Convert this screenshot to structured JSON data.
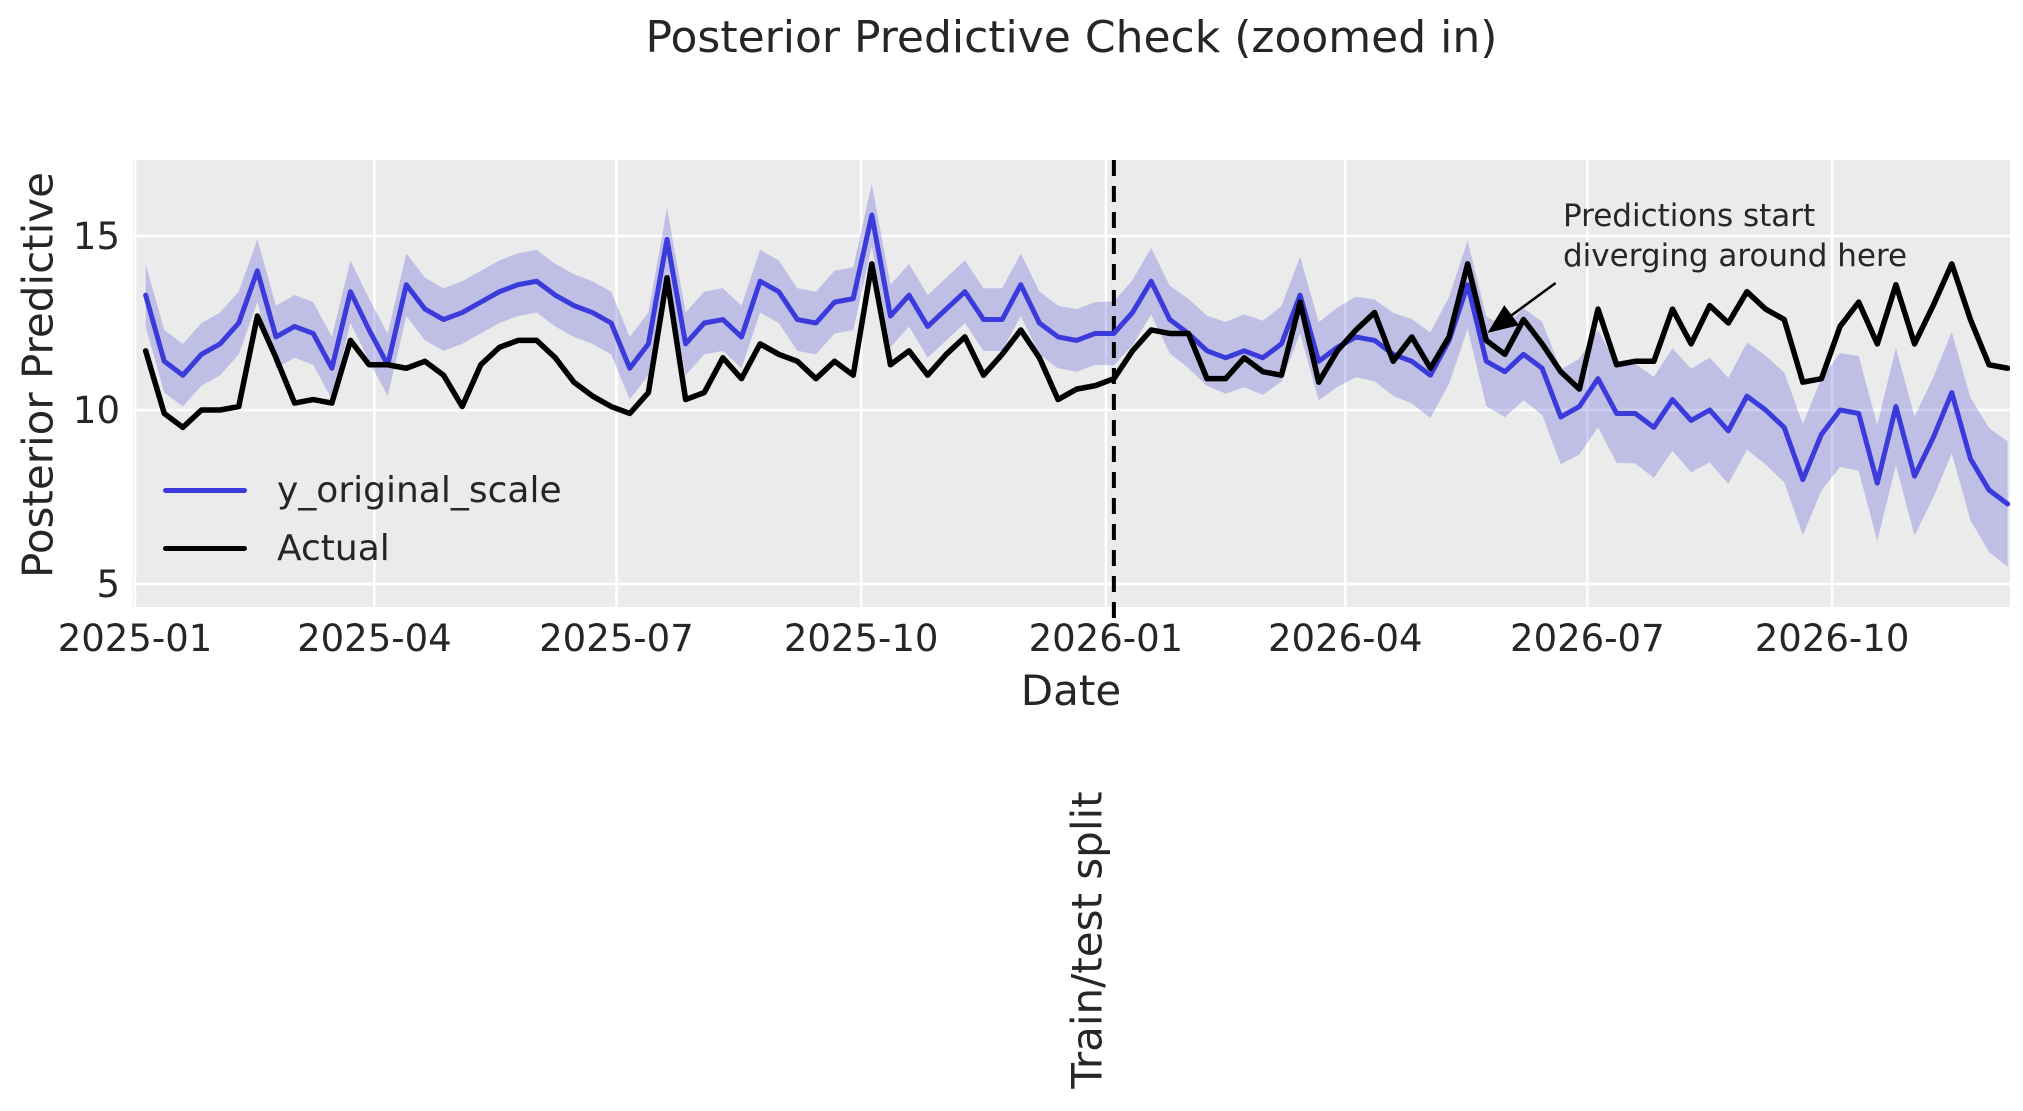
{
  "figure": {
    "background": "#ffffff",
    "plot_background": "#ebebeb",
    "grid_color": "#ffffff",
    "text_color": "#262626"
  },
  "chart_data": {
    "type": "line",
    "title": "Posterior Predictive Check (zoomed in)",
    "xlabel": "Date",
    "ylabel": "Posterior Predictive",
    "grid": true,
    "legend_position": "lower left",
    "yticks": [
      15,
      10,
      5
    ],
    "ylim": [
      4.3,
      17.2
    ],
    "xticks": [
      "2025-01",
      "2025-04",
      "2025-07",
      "2025-10",
      "2026-01",
      "2026-04",
      "2026-07",
      "2026-10"
    ],
    "x_start": "2025-01-05",
    "x_step_days": 7,
    "n_points": 101,
    "series": [
      {
        "name": "y_original_scale",
        "color": "#3b3bdc",
        "line_width": 5,
        "values": [
          13.3,
          11.4,
          11.0,
          11.6,
          11.9,
          12.5,
          14.0,
          12.1,
          12.4,
          12.2,
          11.2,
          13.4,
          12.3,
          11.3,
          13.6,
          12.9,
          12.6,
          12.8,
          13.1,
          13.4,
          13.6,
          13.7,
          13.3,
          13.0,
          12.8,
          12.5,
          11.2,
          11.9,
          14.9,
          11.9,
          12.5,
          12.6,
          12.1,
          13.7,
          13.4,
          12.6,
          12.5,
          13.1,
          13.2,
          15.6,
          12.7,
          13.3,
          12.4,
          12.9,
          13.4,
          12.6,
          12.6,
          13.6,
          12.5,
          12.1,
          12.0,
          12.2,
          12.2,
          12.8,
          13.7,
          12.6,
          12.2,
          11.7,
          11.5,
          11.7,
          11.5,
          11.9,
          13.3,
          11.4,
          11.8,
          12.1,
          12.0,
          11.6,
          11.4,
          11.0,
          12.0,
          13.6,
          11.4,
          11.1,
          11.6,
          11.2,
          9.8,
          10.1,
          10.9,
          9.9,
          9.9,
          9.5,
          10.3,
          9.7,
          10.0,
          9.4,
          10.4,
          10.0,
          9.5,
          8.0,
          9.3,
          10.0,
          9.9,
          7.9,
          10.1,
          8.1,
          9.2,
          10.5,
          8.6,
          7.7,
          7.3
        ]
      },
      {
        "name": "Actual",
        "color": "#000000",
        "line_width": 5.5,
        "values": [
          11.7,
          9.9,
          9.5,
          10.0,
          10.0,
          10.1,
          12.7,
          11.5,
          10.2,
          10.3,
          10.2,
          12.0,
          11.3,
          11.3,
          11.2,
          11.4,
          11.0,
          10.1,
          11.3,
          11.8,
          12.0,
          12.0,
          11.5,
          10.8,
          10.4,
          10.1,
          9.9,
          10.5,
          13.8,
          10.3,
          10.5,
          11.5,
          10.9,
          11.9,
          11.6,
          11.4,
          10.9,
          11.4,
          11.0,
          14.2,
          11.3,
          11.7,
          11.0,
          11.6,
          12.1,
          11.0,
          11.6,
          12.3,
          11.5,
          10.3,
          10.6,
          10.7,
          10.9,
          11.7,
          12.3,
          12.2,
          12.2,
          10.9,
          10.9,
          11.5,
          11.1,
          11.0,
          13.1,
          10.8,
          11.7,
          12.3,
          12.8,
          11.4,
          12.1,
          11.2,
          12.1,
          14.2,
          12.0,
          11.6,
          12.6,
          11.9,
          11.1,
          10.6,
          12.9,
          11.3,
          11.4,
          11.4,
          12.9,
          11.9,
          13.0,
          12.5,
          13.4,
          12.9,
          12.6,
          10.8,
          10.9,
          12.4,
          13.1,
          11.9,
          13.6,
          11.9,
          13.0,
          14.2,
          12.6,
          11.3,
          11.2
        ]
      }
    ],
    "uncertainty_band": {
      "around_series": "y_original_scale",
      "color": "#5050d8",
      "opacity": 0.28,
      "halfwidth_train": 0.9,
      "halfwidth_test_end": 1.8,
      "n_train": 52
    },
    "split_line": {
      "date": "2026-01-04",
      "label": "Train/test split",
      "style": "dashed",
      "color": "#000000"
    },
    "annotation": {
      "line1": "Predictions start",
      "line2": "diverging around here",
      "arrow_target_date": "2026-05-26",
      "arrow_target_value": 12.3
    }
  }
}
